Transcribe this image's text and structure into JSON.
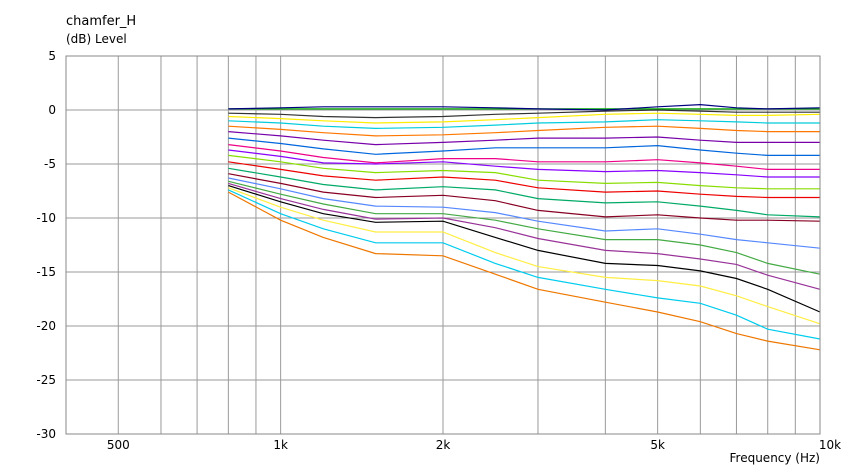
{
  "chart_data": {
    "type": "line",
    "title": "chamfer_H",
    "ylabel": "(dB)  Level",
    "xlabel": "Frequency  (Hz)",
    "xscale": "log",
    "xlim": [
      400,
      10000
    ],
    "ylim": [
      -30,
      5
    ],
    "grid": true,
    "x_ticks": [
      {
        "value": 500,
        "label": "500"
      },
      {
        "value": 1000,
        "label": "1k"
      },
      {
        "value": 2000,
        "label": "2k"
      },
      {
        "value": 5000,
        "label": "5k"
      },
      {
        "value": 10000,
        "label": "10k"
      }
    ],
    "x_minor_grid": [
      600,
      700,
      800,
      900,
      3000,
      4000,
      6000,
      7000,
      8000,
      9000
    ],
    "y_ticks": [
      5,
      0,
      -5,
      -10,
      -15,
      -20,
      -25,
      -30
    ],
    "x": [
      800,
      1000,
      1200,
      1500,
      2000,
      2500,
      3000,
      4000,
      5000,
      6000,
      7000,
      8000,
      10000
    ],
    "series": [
      {
        "color": "#00aa00",
        "values": [
          0.1,
          0.1,
          0.1,
          0.1,
          0.1,
          0.1,
          0.1,
          0.1,
          0.1,
          0.1,
          0.1,
          0.1,
          0.1
        ]
      },
      {
        "color": "#000080",
        "values": [
          0.1,
          0.2,
          0.3,
          0.3,
          0.3,
          0.2,
          0.1,
          0.0,
          0.3,
          0.5,
          0.2,
          0.1,
          0.2
        ]
      },
      {
        "color": "#333333",
        "values": [
          -0.3,
          -0.4,
          -0.6,
          -0.7,
          -0.6,
          -0.4,
          -0.3,
          -0.1,
          0.0,
          -0.1,
          -0.2,
          -0.2,
          -0.2
        ]
      },
      {
        "color": "#ffee00",
        "values": [
          -0.6,
          -0.8,
          -1.0,
          -1.2,
          -1.1,
          -0.9,
          -0.7,
          -0.4,
          -0.3,
          -0.4,
          -0.5,
          -0.5,
          -0.4
        ]
      },
      {
        "color": "#00ccdd",
        "values": [
          -1.0,
          -1.2,
          -1.5,
          -1.7,
          -1.6,
          -1.4,
          -1.2,
          -1.1,
          -0.9,
          -1.0,
          -1.1,
          -1.2,
          -1.2
        ]
      },
      {
        "color": "#ff7700",
        "values": [
          -1.5,
          -1.8,
          -2.1,
          -2.4,
          -2.3,
          -2.1,
          -1.9,
          -1.6,
          -1.5,
          -1.7,
          -1.9,
          -2.0,
          -2.0
        ]
      },
      {
        "color": "#7700aa",
        "values": [
          -2.0,
          -2.4,
          -2.8,
          -3.2,
          -3.0,
          -2.8,
          -2.6,
          -2.6,
          -2.5,
          -2.8,
          -3.0,
          -3.0,
          -3.0
        ]
      },
      {
        "color": "#0066dd",
        "values": [
          -2.6,
          -3.1,
          -3.6,
          -4.1,
          -3.8,
          -3.5,
          -3.5,
          -3.5,
          -3.3,
          -3.7,
          -4.0,
          -4.2,
          -4.2
        ]
      },
      {
        "color": "#ee0088",
        "values": [
          -3.2,
          -3.8,
          -4.4,
          -4.9,
          -4.5,
          -4.5,
          -4.8,
          -4.8,
          -4.6,
          -4.9,
          -5.2,
          -5.5,
          -5.5
        ]
      },
      {
        "color": "#8800ff",
        "values": [
          -3.7,
          -4.3,
          -4.9,
          -5.0,
          -4.8,
          -5.2,
          -5.5,
          -5.7,
          -5.6,
          -5.8,
          -6.0,
          -6.2,
          -6.2
        ]
      },
      {
        "color": "#88dd00",
        "values": [
          -4.2,
          -4.8,
          -5.4,
          -5.8,
          -5.6,
          -5.8,
          -6.5,
          -6.8,
          -6.7,
          -7.0,
          -7.2,
          -7.3,
          -7.3
        ]
      },
      {
        "color": "#ee0000",
        "values": [
          -4.8,
          -5.5,
          -6.1,
          -6.5,
          -6.2,
          -6.5,
          -7.2,
          -7.6,
          -7.5,
          -7.8,
          -8.0,
          -8.1,
          -8.1
        ]
      },
      {
        "color": "#00aa66",
        "values": [
          -5.4,
          -6.2,
          -6.9,
          -7.4,
          -7.1,
          -7.4,
          -8.2,
          -8.6,
          -8.5,
          -8.9,
          -9.3,
          -9.7,
          -9.9
        ]
      },
      {
        "color": "#880022",
        "values": [
          -5.9,
          -6.8,
          -7.6,
          -8.1,
          -7.9,
          -8.4,
          -9.3,
          -9.9,
          -9.7,
          -10.0,
          -10.2,
          -10.2,
          -10.3
        ]
      },
      {
        "color": "#5588ff",
        "values": [
          -6.3,
          -7.3,
          -8.2,
          -8.9,
          -9.0,
          -9.5,
          -10.3,
          -11.2,
          -11.0,
          -11.5,
          -12.0,
          -12.3,
          -12.8
        ]
      },
      {
        "color": "#44aa44",
        "values": [
          -6.6,
          -7.8,
          -8.7,
          -9.6,
          -9.6,
          -10.2,
          -11.0,
          -12.0,
          -12.0,
          -12.5,
          -13.2,
          -14.2,
          -15.2
        ]
      },
      {
        "color": "#993399",
        "values": [
          -6.8,
          -8.2,
          -9.2,
          -10.1,
          -10.0,
          -10.9,
          -11.9,
          -13.0,
          -13.3,
          -13.8,
          -14.3,
          -15.3,
          -16.6
        ]
      },
      {
        "color": "#000000",
        "values": [
          -7.0,
          -8.5,
          -9.6,
          -10.4,
          -10.3,
          -11.8,
          -13.0,
          -14.2,
          -14.4,
          -14.9,
          -15.6,
          -16.6,
          -18.7
        ]
      },
      {
        "color": "#ffee44",
        "values": [
          -7.2,
          -9.0,
          -10.2,
          -11.3,
          -11.3,
          -13.2,
          -14.5,
          -15.5,
          -15.8,
          -16.3,
          -17.2,
          -18.2,
          -19.8
        ]
      },
      {
        "color": "#00ccee",
        "values": [
          -7.4,
          -9.6,
          -11.0,
          -12.3,
          -12.3,
          -14.2,
          -15.5,
          -16.6,
          -17.4,
          -17.9,
          -19.0,
          -20.3,
          -21.2
        ]
      },
      {
        "color": "#ee7700",
        "values": [
          -7.6,
          -10.2,
          -11.8,
          -13.3,
          -13.5,
          -15.2,
          -16.6,
          -17.8,
          -18.7,
          -19.6,
          -20.7,
          -21.4,
          -22.2
        ]
      }
    ]
  }
}
